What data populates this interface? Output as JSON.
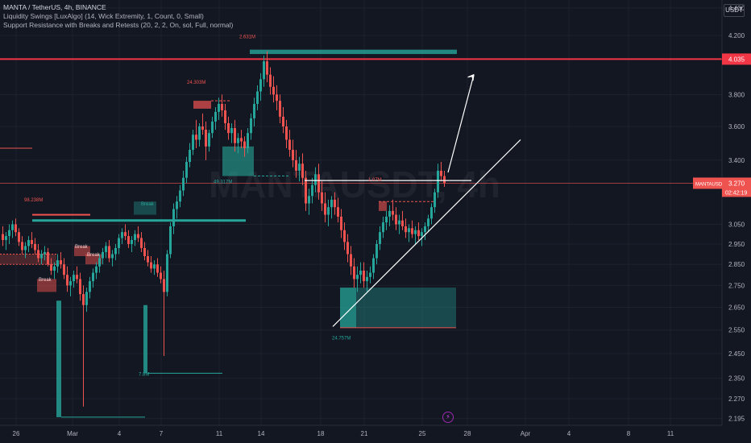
{
  "header": {
    "symbol_line": "MANTA / TetherUS, 4h, BINANCE",
    "indicator_1": "Liquidity Swings [LuxAlgo] (14, Wick Extremity, 1, Count, 0, Small)",
    "indicator_2": "Support Resistance with Breaks and Retests (20, 2, 2, On, sol, Full, normal)"
  },
  "unit_label": "USDT",
  "watermark": "MANTAUSDT, 4h",
  "colors": {
    "bg": "#131722",
    "up": "#26a69a",
    "down": "#ef5350",
    "grid": "#1e222d",
    "resistance": "#f23645"
  },
  "chart_data": {
    "type": "candlestick",
    "title": "",
    "y_scale": "log",
    "ylim": [
      2.17,
      4.46
    ],
    "y_ticks": [
      4.4,
      4.2,
      4.035,
      3.8,
      3.6,
      3.4,
      3.27,
      3.05,
      2.95,
      2.85,
      2.75,
      2.65,
      2.55,
      2.45,
      2.35,
      2.27,
      2.195
    ],
    "y_tick_labels": [
      "4.400",
      "4.200",
      "4.035",
      "3.800",
      "3.600",
      "3.400",
      "3.270",
      "3.050",
      "2.950",
      "2.850",
      "2.750",
      "2.650",
      "2.550",
      "2.450",
      "2.350",
      "2.270",
      "2.195"
    ],
    "x_ticks": [
      "26",
      "Mar",
      "4",
      "7",
      "11",
      "14",
      "18",
      "21",
      "25",
      "28",
      "Apr",
      "4",
      "8",
      "11"
    ],
    "resistance_level": 4.035,
    "last_price": {
      "symbol": "MANTAUSDT",
      "value": "3.270",
      "countdown": "02:42:19"
    },
    "liquidity_labels": [
      "98.238M",
      "24.303M",
      "2.631M",
      "49.317M",
      "1.07M",
      "7.8M",
      "24.757M"
    ],
    "zone_labels": [
      "Break",
      "Break",
      "Break",
      "Break"
    ],
    "candles": [
      [
        3.0,
        3.04,
        2.94,
        2.97
      ],
      [
        2.97,
        3.01,
        2.92,
        2.99
      ],
      [
        2.99,
        3.05,
        2.95,
        3.02
      ],
      [
        3.02,
        3.07,
        2.98,
        3.05
      ],
      [
        3.05,
        3.08,
        2.99,
        3.01
      ],
      [
        3.01,
        3.03,
        2.94,
        2.96
      ],
      [
        2.96,
        2.99,
        2.9,
        2.92
      ],
      [
        2.92,
        2.96,
        2.88,
        2.94
      ],
      [
        2.94,
        2.99,
        2.91,
        2.97
      ],
      [
        2.97,
        3.01,
        2.93,
        2.95
      ],
      [
        2.95,
        2.98,
        2.9,
        2.92
      ],
      [
        2.92,
        2.95,
        2.86,
        2.88
      ],
      [
        2.88,
        2.92,
        2.85,
        2.9
      ],
      [
        2.9,
        2.94,
        2.87,
        2.91
      ],
      [
        2.91,
        2.93,
        2.84,
        2.85
      ],
      [
        2.85,
        2.88,
        2.8,
        2.82
      ],
      [
        2.82,
        2.86,
        2.78,
        2.84
      ],
      [
        2.84,
        2.9,
        2.81,
        2.87
      ],
      [
        2.87,
        2.91,
        2.83,
        2.85
      ],
      [
        2.85,
        2.88,
        2.78,
        2.8
      ],
      [
        2.8,
        2.84,
        2.72,
        2.75
      ],
      [
        2.75,
        2.79,
        2.7,
        2.77
      ],
      [
        2.77,
        2.82,
        2.74,
        2.8
      ],
      [
        2.8,
        2.84,
        2.76,
        2.78
      ],
      [
        2.78,
        2.81,
        2.68,
        2.71
      ],
      [
        2.71,
        2.75,
        2.24,
        2.66
      ],
      [
        2.66,
        2.74,
        2.63,
        2.72
      ],
      [
        2.72,
        2.79,
        2.69,
        2.77
      ],
      [
        2.77,
        2.83,
        2.74,
        2.81
      ],
      [
        2.81,
        2.86,
        2.78,
        2.84
      ],
      [
        2.84,
        2.9,
        2.81,
        2.88
      ],
      [
        2.88,
        2.93,
        2.85,
        2.91
      ],
      [
        2.91,
        2.96,
        2.88,
        2.94
      ],
      [
        2.94,
        2.97,
        2.86,
        2.88
      ],
      [
        2.88,
        2.92,
        2.84,
        2.9
      ],
      [
        2.9,
        2.95,
        2.87,
        2.93
      ],
      [
        2.93,
        3.0,
        2.9,
        2.98
      ],
      [
        2.98,
        3.03,
        2.95,
        3.01
      ],
      [
        3.01,
        3.05,
        2.97,
        2.99
      ],
      [
        2.99,
        3.02,
        2.93,
        2.95
      ],
      [
        2.95,
        2.99,
        2.91,
        2.97
      ],
      [
        2.97,
        3.02,
        2.94,
        3.0
      ],
      [
        3.0,
        3.04,
        2.96,
        2.98
      ],
      [
        2.98,
        3.01,
        2.91,
        2.93
      ],
      [
        2.93,
        2.96,
        2.87,
        2.89
      ],
      [
        2.89,
        2.92,
        2.84,
        2.86
      ],
      [
        2.86,
        2.89,
        2.81,
        2.83
      ],
      [
        2.83,
        2.87,
        2.8,
        2.85
      ],
      [
        2.85,
        2.88,
        2.79,
        2.81
      ],
      [
        2.81,
        2.84,
        2.76,
        2.78
      ],
      [
        2.78,
        2.82,
        2.44,
        2.72
      ],
      [
        2.72,
        2.92,
        2.7,
        2.9
      ],
      [
        2.9,
        3.06,
        2.88,
        3.04
      ],
      [
        3.04,
        3.16,
        3.0,
        3.13
      ],
      [
        3.13,
        3.2,
        3.08,
        3.17
      ],
      [
        3.17,
        3.26,
        3.14,
        3.23
      ],
      [
        3.23,
        3.34,
        3.2,
        3.3
      ],
      [
        3.3,
        3.42,
        3.27,
        3.39
      ],
      [
        3.39,
        3.5,
        3.36,
        3.46
      ],
      [
        3.46,
        3.58,
        3.43,
        3.55
      ],
      [
        3.55,
        3.64,
        3.47,
        3.52
      ],
      [
        3.52,
        3.62,
        3.48,
        3.6
      ],
      [
        3.6,
        3.68,
        3.55,
        3.58
      ],
      [
        3.58,
        3.63,
        3.4,
        3.48
      ],
      [
        3.48,
        3.58,
        3.45,
        3.56
      ],
      [
        3.56,
        3.66,
        3.53,
        3.63
      ],
      [
        3.63,
        3.72,
        3.58,
        3.69
      ],
      [
        3.69,
        3.78,
        3.64,
        3.74
      ],
      [
        3.74,
        3.8,
        3.66,
        3.7
      ],
      [
        3.7,
        3.74,
        3.58,
        3.62
      ],
      [
        3.62,
        3.66,
        3.52,
        3.56
      ],
      [
        3.56,
        3.62,
        3.5,
        3.59
      ],
      [
        3.59,
        3.64,
        3.45,
        3.5
      ],
      [
        3.5,
        3.56,
        3.44,
        3.53
      ],
      [
        3.53,
        3.58,
        3.47,
        3.51
      ],
      [
        3.51,
        3.54,
        3.42,
        3.47
      ],
      [
        3.47,
        3.59,
        3.44,
        3.56
      ],
      [
        3.56,
        3.68,
        3.52,
        3.65
      ],
      [
        3.65,
        3.78,
        3.6,
        3.74
      ],
      [
        3.74,
        3.86,
        3.7,
        3.82
      ],
      [
        3.82,
        3.94,
        3.76,
        3.9
      ],
      [
        3.9,
        4.06,
        3.85,
        4.02
      ],
      [
        4.02,
        4.09,
        3.88,
        3.93
      ],
      [
        3.93,
        3.98,
        3.8,
        3.85
      ],
      [
        3.85,
        3.92,
        3.75,
        3.8
      ],
      [
        3.8,
        3.86,
        3.7,
        3.76
      ],
      [
        3.76,
        3.8,
        3.62,
        3.66
      ],
      [
        3.66,
        3.72,
        3.56,
        3.6
      ],
      [
        3.6,
        3.64,
        3.47,
        3.52
      ],
      [
        3.52,
        3.58,
        3.42,
        3.46
      ],
      [
        3.46,
        3.52,
        3.36,
        3.4
      ],
      [
        3.4,
        3.46,
        3.3,
        3.34
      ],
      [
        3.34,
        3.42,
        3.28,
        3.38
      ],
      [
        3.38,
        3.44,
        3.26,
        3.3
      ],
      [
        3.3,
        3.34,
        3.12,
        3.16
      ],
      [
        3.16,
        3.24,
        3.1,
        3.2
      ],
      [
        3.2,
        3.3,
        3.16,
        3.26
      ],
      [
        3.26,
        3.36,
        3.22,
        3.32
      ],
      [
        3.32,
        3.38,
        3.18,
        3.22
      ],
      [
        3.22,
        3.28,
        3.12,
        3.16
      ],
      [
        3.16,
        3.22,
        3.06,
        3.1
      ],
      [
        3.1,
        3.18,
        3.04,
        3.14
      ],
      [
        3.14,
        3.2,
        3.08,
        3.18
      ],
      [
        3.18,
        3.22,
        3.1,
        3.14
      ],
      [
        3.14,
        3.19,
        3.06,
        3.09
      ],
      [
        3.09,
        3.13,
        2.98,
        3.02
      ],
      [
        3.02,
        3.06,
        2.92,
        2.96
      ],
      [
        2.96,
        3.0,
        2.86,
        2.9
      ],
      [
        2.9,
        2.94,
        2.8,
        2.84
      ],
      [
        2.84,
        2.88,
        2.74,
        2.78
      ],
      [
        2.78,
        2.84,
        2.72,
        2.8
      ],
      [
        2.8,
        2.86,
        2.76,
        2.82
      ],
      [
        2.82,
        2.86,
        2.74,
        2.77
      ],
      [
        2.77,
        2.82,
        2.72,
        2.79
      ],
      [
        2.79,
        2.84,
        2.76,
        2.81
      ],
      [
        2.81,
        2.9,
        2.78,
        2.88
      ],
      [
        2.88,
        2.97,
        2.85,
        2.95
      ],
      [
        2.95,
        3.04,
        2.92,
        3.01
      ],
      [
        3.01,
        3.09,
        2.98,
        3.06
      ],
      [
        3.06,
        3.12,
        3.02,
        3.09
      ],
      [
        3.09,
        3.15,
        3.04,
        3.12
      ],
      [
        3.12,
        3.18,
        3.07,
        3.1
      ],
      [
        3.1,
        3.14,
        3.02,
        3.05
      ],
      [
        3.05,
        3.1,
        3.0,
        3.07
      ],
      [
        3.07,
        3.12,
        3.02,
        3.04
      ],
      [
        3.04,
        3.08,
        2.98,
        3.01
      ],
      [
        3.01,
        3.05,
        2.96,
        3.03
      ],
      [
        3.03,
        3.07,
        2.98,
        3.0
      ],
      [
        3.0,
        3.04,
        2.95,
        3.02
      ],
      [
        3.02,
        3.06,
        2.97,
        2.99
      ],
      [
        2.99,
        3.03,
        2.94,
        3.01
      ],
      [
        3.01,
        3.06,
        2.97,
        3.04
      ],
      [
        3.04,
        3.1,
        3.01,
        3.08
      ],
      [
        3.08,
        3.16,
        3.05,
        3.14
      ],
      [
        3.14,
        3.24,
        3.11,
        3.22
      ],
      [
        3.22,
        3.38,
        3.19,
        3.34
      ],
      [
        3.34,
        3.39,
        3.28,
        3.31
      ],
      [
        3.31,
        3.34,
        3.25,
        3.27
      ]
    ]
  }
}
